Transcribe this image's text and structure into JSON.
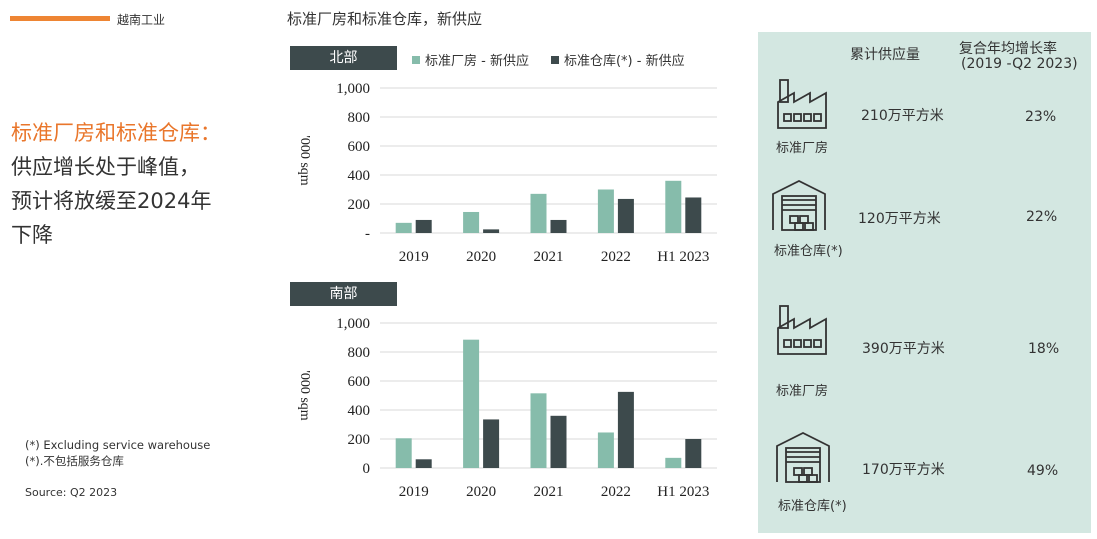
{
  "header": {
    "tag": "越南工业",
    "page_title": "标准厂房和标准仓库，新供应"
  },
  "headline": {
    "highlight": "标准厂房和标准仓库：",
    "line1": "供应增长处于峰值，",
    "line2": "预计将放缓至2024年",
    "line3": "下降"
  },
  "footnotes": {
    "note_en": "(*) Excluding  service warehouse",
    "note_cn": "(*).不包括服务仓库",
    "source": "Source: Q2 2023"
  },
  "legend": {
    "factory": "标准厂房 - 新供应",
    "warehouse": "标准仓库(*) - 新供应"
  },
  "colors": {
    "factory": "#86bcab",
    "warehouse": "#3d4a4c",
    "panel": "#d3e7e1",
    "accent": "#ee8533"
  },
  "chart_data": [
    {
      "type": "bar",
      "title": "北部",
      "categories": [
        "2019",
        "2020",
        "2021",
        "2022",
        "H1 2023"
      ],
      "series": [
        {
          "name": "标准厂房 - 新供应",
          "values": [
            70,
            145,
            270,
            300,
            360
          ]
        },
        {
          "name": "标准仓库(*) - 新供应",
          "values": [
            90,
            25,
            90,
            235,
            245
          ]
        }
      ],
      "ylabel": "'000 sqm",
      "ylim": [
        0,
        1000
      ],
      "yticks": [
        "-",
        "200",
        "400",
        "600",
        "800",
        "1,000"
      ],
      "grid": true
    },
    {
      "type": "bar",
      "title": "南部",
      "categories": [
        "2019",
        "2020",
        "2021",
        "2022",
        "H1 2023"
      ],
      "series": [
        {
          "name": "标准厂房 - 新供应",
          "values": [
            205,
            885,
            515,
            245,
            70
          ]
        },
        {
          "name": "标准仓库(*) - 新供应",
          "values": [
            60,
            335,
            360,
            525,
            200
          ]
        }
      ],
      "ylabel": "'000 sqm",
      "ylim": [
        0,
        1000
      ],
      "yticks": [
        "0",
        "200",
        "400",
        "600",
        "800",
        "1,000"
      ],
      "grid": true
    }
  ],
  "summary": {
    "header_supply": "累计供应量",
    "header_cagr": "复合年均增长率",
    "header_cagr_range": "(2019  -Q2 2023)",
    "items": [
      {
        "label": "标准厂房",
        "icon": "factory-icon",
        "supply": "210万平方米",
        "cagr": "23%"
      },
      {
        "label": "标准仓库(*)",
        "icon": "warehouse-icon",
        "supply": "120万平方米",
        "cagr": "22%"
      },
      {
        "label": "标准厂房",
        "icon": "factory-icon",
        "supply": "390万平方米",
        "cagr": "18%"
      },
      {
        "label": "标准仓库(*)",
        "icon": "warehouse-icon",
        "supply": "170万平方米",
        "cagr": "49%"
      }
    ]
  }
}
